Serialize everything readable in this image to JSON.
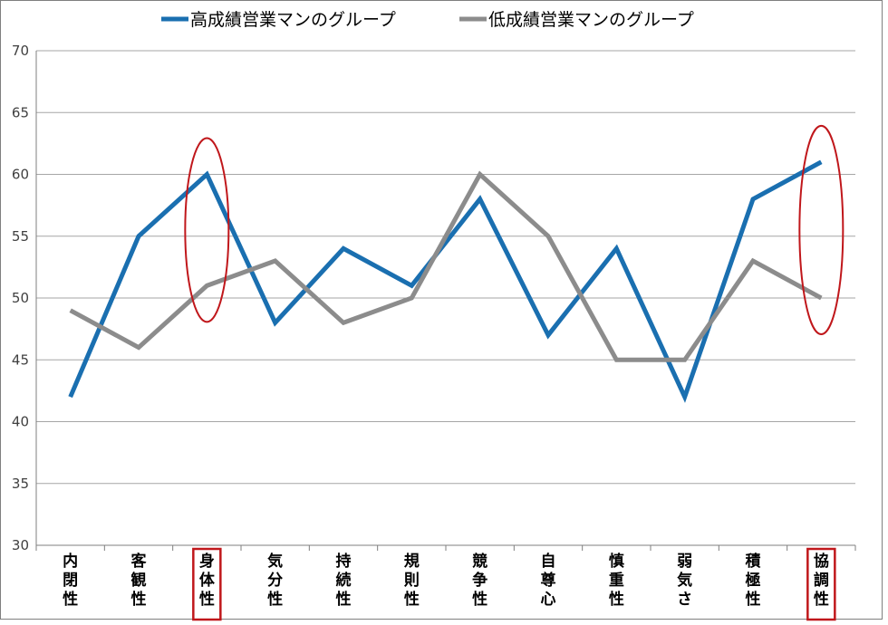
{
  "chart_data": {
    "type": "line",
    "categories": [
      "内閉性",
      "客観性",
      "身体性",
      "気分性",
      "持続性",
      "規則性",
      "競争性",
      "自尊心",
      "慎重性",
      "弱気さ",
      "積極性",
      "協調性"
    ],
    "series": [
      {
        "name": "高成績営業マンのグループ",
        "color": "#1a6fb0",
        "values": [
          42,
          55,
          60,
          48,
          54,
          51,
          58,
          47,
          54,
          42,
          58,
          61
        ]
      },
      {
        "name": "低成績営業マンのグループ",
        "color": "#8c8c8c",
        "values": [
          49,
          46,
          51,
          53,
          48,
          50,
          60,
          55,
          45,
          45,
          53,
          50
        ]
      }
    ],
    "ylim": [
      30,
      70
    ],
    "yticks": [
      30,
      35,
      40,
      45,
      50,
      55,
      60,
      65,
      70
    ],
    "grid": true,
    "legend_position": "top",
    "highlighted_categories": [
      "身体性",
      "協調性"
    ],
    "highlight_color": "#c0171b"
  }
}
